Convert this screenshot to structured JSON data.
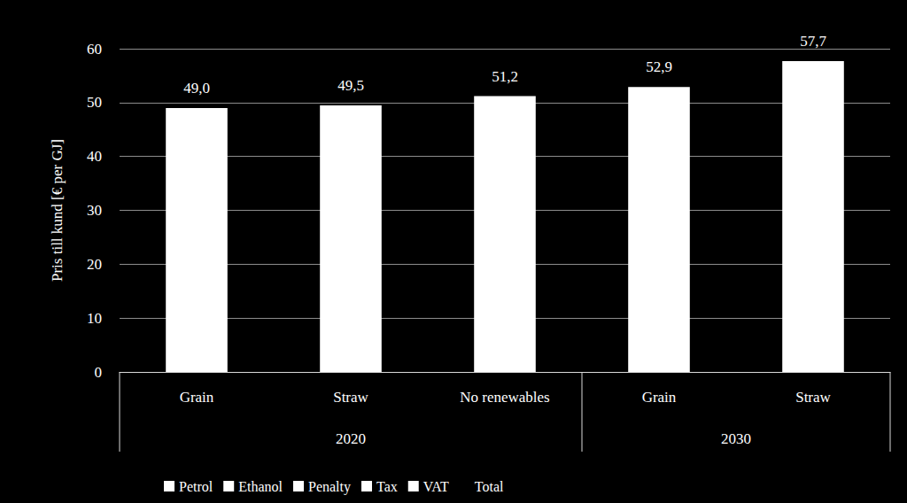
{
  "chart_data": {
    "type": "bar",
    "ylabel": "Pris till kund [€ per GJ]",
    "categories": [
      "Grain",
      "Straw",
      "No renewables",
      "Grain",
      "Straw"
    ],
    "group_labels": [
      "2020",
      "2020",
      "2020",
      "2030",
      "2030"
    ],
    "series": [
      {
        "name": "Petrol",
        "color": "#ffffff",
        "values": [
          null,
          null,
          null,
          null,
          null
        ]
      },
      {
        "name": "Ethanol",
        "color": "#ffffff",
        "values": [
          null,
          null,
          null,
          null,
          null
        ]
      },
      {
        "name": "Penalty",
        "color": "#ffffff",
        "values": [
          null,
          null,
          null,
          null,
          null
        ]
      },
      {
        "name": "Tax",
        "color": "#ffffff",
        "values": [
          null,
          null,
          null,
          null,
          null
        ]
      },
      {
        "name": "VAT",
        "color": "#ffffff",
        "values": [
          null,
          null,
          null,
          null,
          null
        ]
      },
      {
        "name": "Total",
        "color": "#ffffff",
        "marker": "none",
        "values": [
          49.0,
          49.5,
          51.2,
          52.9,
          57.7
        ],
        "value_labels": [
          "49,0",
          "49,5",
          "51,2",
          "52,9",
          "57,7"
        ]
      }
    ],
    "ylim": [
      0,
      60
    ],
    "yticks": [
      0,
      10,
      20,
      30,
      40,
      50,
      60
    ],
    "grid": true,
    "data_labels": true,
    "legend": "bottom"
  }
}
